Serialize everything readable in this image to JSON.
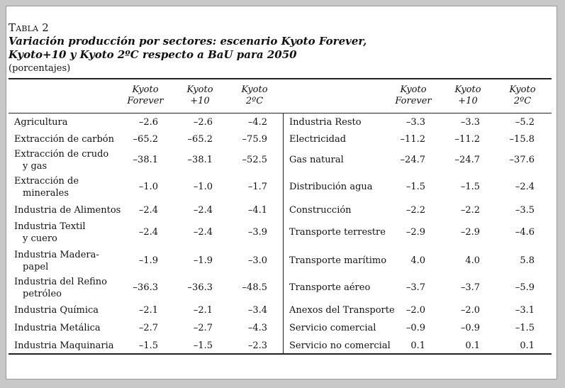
{
  "caption": {
    "number": "Tabla 2",
    "title_line1": "Variación producción por sectores: escenario Kyoto Forever,",
    "title_line2": "Kyoto+10 y Kyoto 2ºC respecto a BaU para 2050",
    "unit": "(porcentajes)"
  },
  "columns": [
    {
      "line1": "Kyoto",
      "line2": "Forever"
    },
    {
      "line1": "Kyoto",
      "line2": "+10"
    },
    {
      "line1": "Kyoto",
      "line2": "2ºC"
    },
    {
      "line1": "Kyoto",
      "line2": "Forever"
    },
    {
      "line1": "Kyoto",
      "line2": "+10"
    },
    {
      "line1": "Kyoto",
      "line2": "2ºC"
    }
  ],
  "rows": [
    {
      "left": {
        "l1": "Agricultura",
        "l2": "",
        "v": [
          "–2.6",
          "–2.6",
          "–4.2"
        ]
      },
      "right": {
        "l": "Industria Resto",
        "v": [
          "–3.3",
          "–3.3",
          "–5.2"
        ]
      }
    },
    {
      "left": {
        "l1": "Extracción de carbón",
        "l2": "",
        "v": [
          "–65.2",
          "–65.2",
          "–75.9"
        ]
      },
      "right": {
        "l": "Electricidad",
        "v": [
          "–11.2",
          "–11.2",
          "–15.8"
        ]
      }
    },
    {
      "left": {
        "l1": "Extracción de crudo",
        "l2": "y gas",
        "v": [
          "–38.1",
          "–38.1",
          "–52.5"
        ]
      },
      "right": {
        "l": "Gas natural",
        "v": [
          "–24.7",
          "–24.7",
          "–37.6"
        ]
      }
    },
    {
      "left": {
        "l1": "Extracción de",
        "l2": "minerales",
        "v": [
          "–1.0",
          "–1.0",
          "–1.7"
        ]
      },
      "right": {
        "l": "Distribución agua",
        "v": [
          "–1.5",
          "–1.5",
          "–2.4"
        ]
      }
    },
    {
      "left": {
        "l1": "Industria de Alimentos",
        "l2": "",
        "v": [
          "–2.4",
          "–2.4",
          "–4.1"
        ]
      },
      "right": {
        "l": "Construcción",
        "v": [
          "–2.2",
          "–2.2",
          "–3.5"
        ]
      }
    },
    {
      "left": {
        "l1": "Industria Textil",
        "l2": "y cuero",
        "v": [
          "–2.4",
          "–2.4",
          "–3.9"
        ]
      },
      "right": {
        "l": "Transporte terrestre",
        "v": [
          "–2.9",
          "–2.9",
          "–4.6"
        ]
      }
    },
    {
      "left": {
        "l1": "Industria Madera-",
        "l2": "papel",
        "v": [
          "–1.9",
          "–1.9",
          "–3.0"
        ]
      },
      "right": {
        "l": "Transporte marítimo",
        "v": [
          "4.0",
          "4.0",
          "5.8"
        ]
      }
    },
    {
      "left": {
        "l1": "Industria del Refino",
        "l2": "petróleo",
        "v": [
          "–36.3",
          "–36.3",
          "–48.5"
        ]
      },
      "right": {
        "l": "Transporte aéreo",
        "v": [
          "–3.7",
          "–3.7",
          "–5.9"
        ]
      }
    },
    {
      "left": {
        "l1": "Industria Química",
        "l2": "",
        "v": [
          "–2.1",
          "–2.1",
          "–3.4"
        ]
      },
      "right": {
        "l": "Anexos del Transporte",
        "v": [
          "–2.0",
          "–2.0",
          "–3.1"
        ]
      }
    },
    {
      "left": {
        "l1": "Industria Metálica",
        "l2": "",
        "v": [
          "–2.7",
          "–2.7",
          "–4.3"
        ]
      },
      "right": {
        "l": "Servicio comercial",
        "v": [
          "–0.9",
          "–0.9",
          "–1.5"
        ]
      }
    },
    {
      "left": {
        "l1": "Industria Maquinaria",
        "l2": "",
        "v": [
          "–1.5",
          "–1.5",
          "–2.3"
        ]
      },
      "right": {
        "l": "Servicio no comercial",
        "v": [
          "0.1",
          "0.1",
          "0.1"
        ]
      }
    }
  ]
}
